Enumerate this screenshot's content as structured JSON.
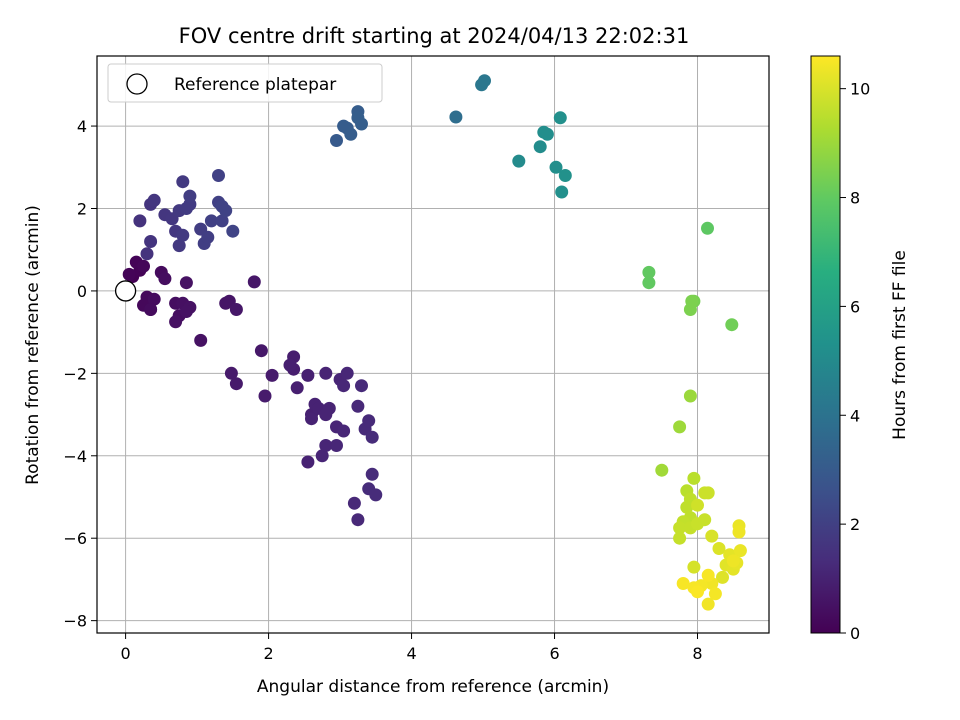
{
  "chart_data": {
    "type": "scatter",
    "title": "FOV centre drift starting at 2024/04/13 22:02:31",
    "xlabel": "Angular distance from reference (arcmin)",
    "ylabel": "Rotation from reference (arcmin)",
    "xlim": [
      -0.4,
      9.0
    ],
    "ylim": [
      -8.3,
      5.7
    ],
    "xticks": [
      0,
      2,
      4,
      6,
      8
    ],
    "yticks": [
      -8,
      -6,
      -4,
      -2,
      0,
      2,
      4
    ],
    "grid": true,
    "colormap": "viridis",
    "colorbar": {
      "label": "Hours from first FF file",
      "range": [
        0,
        10.6
      ],
      "ticks": [
        0,
        2,
        4,
        6,
        8,
        10
      ]
    },
    "legend": {
      "position": "top-left",
      "entries": [
        "Reference platepar"
      ]
    },
    "reference_point": {
      "x": 0,
      "y": 0,
      "label": "Reference platepar"
    },
    "points": [
      [
        0.1,
        0.35,
        0.0
      ],
      [
        0.2,
        0.5,
        0.05
      ],
      [
        0.15,
        0.7,
        0.1
      ],
      [
        0.05,
        0.4,
        0.1
      ],
      [
        0.25,
        0.6,
        0.15
      ],
      [
        0.3,
        -0.15,
        0.2
      ],
      [
        0.25,
        -0.35,
        0.2
      ],
      [
        0.35,
        -0.45,
        0.25
      ],
      [
        0.4,
        -0.2,
        0.3
      ],
      [
        0.35,
        -0.45,
        0.3
      ],
      [
        0.5,
        0.45,
        0.3
      ],
      [
        0.55,
        0.3,
        0.35
      ],
      [
        0.7,
        -0.3,
        0.4
      ],
      [
        0.75,
        -0.6,
        0.4
      ],
      [
        0.7,
        -0.75,
        0.45
      ],
      [
        0.8,
        -0.3,
        0.45
      ],
      [
        0.9,
        -0.4,
        0.5
      ],
      [
        0.85,
        -0.5,
        0.5
      ],
      [
        0.85,
        0.2,
        0.5
      ],
      [
        1.05,
        -1.2,
        0.5
      ],
      [
        1.4,
        -0.3,
        0.6
      ],
      [
        1.45,
        -0.25,
        0.6
      ],
      [
        1.55,
        -0.45,
        0.65
      ],
      [
        1.8,
        0.22,
        0.65
      ],
      [
        1.9,
        -1.45,
        0.7
      ],
      [
        1.48,
        -2.0,
        0.75
      ],
      [
        1.55,
        -2.25,
        0.75
      ],
      [
        2.05,
        -2.05,
        0.8
      ],
      [
        1.95,
        -2.55,
        0.8
      ],
      [
        2.35,
        -1.6,
        0.85
      ],
      [
        2.35,
        -1.9,
        0.85
      ],
      [
        2.3,
        -1.8,
        0.9
      ],
      [
        2.4,
        -2.35,
        0.9
      ],
      [
        2.55,
        -2.05,
        0.95
      ],
      [
        2.6,
        -3.0,
        0.95
      ],
      [
        2.6,
        -3.1,
        1.0
      ],
      [
        2.65,
        -2.75,
        1.0
      ],
      [
        2.7,
        -2.85,
        1.0
      ],
      [
        2.55,
        -4.15,
        1.0
      ],
      [
        2.8,
        -2.0,
        1.05
      ],
      [
        2.8,
        -3.0,
        1.05
      ],
      [
        2.85,
        -2.85,
        1.05
      ],
      [
        2.75,
        -4.0,
        1.1
      ],
      [
        2.8,
        -3.75,
        1.1
      ],
      [
        2.95,
        -3.3,
        1.1
      ],
      [
        3.0,
        -2.15,
        1.1
      ],
      [
        3.05,
        -2.3,
        1.15
      ],
      [
        3.1,
        -2.0,
        1.15
      ],
      [
        3.05,
        -3.4,
        1.15
      ],
      [
        2.95,
        -3.75,
        1.15
      ],
      [
        3.2,
        -5.15,
        1.2
      ],
      [
        3.25,
        -5.55,
        1.2
      ],
      [
        3.25,
        -2.8,
        1.2
      ],
      [
        3.3,
        -2.3,
        1.25
      ],
      [
        3.35,
        -3.35,
        1.25
      ],
      [
        3.4,
        -3.15,
        1.25
      ],
      [
        3.45,
        -3.55,
        1.3
      ],
      [
        3.4,
        -4.8,
        1.3
      ],
      [
        3.5,
        -4.95,
        1.3
      ],
      [
        3.45,
        -4.45,
        1.3
      ],
      [
        0.2,
        1.7,
        1.55
      ],
      [
        0.3,
        0.9,
        1.55
      ],
      [
        0.35,
        1.2,
        1.6
      ],
      [
        0.35,
        2.1,
        1.6
      ],
      [
        0.4,
        2.2,
        1.65
      ],
      [
        0.55,
        1.85,
        1.65
      ],
      [
        0.65,
        1.75,
        1.7
      ],
      [
        0.7,
        1.45,
        1.7
      ],
      [
        0.75,
        1.1,
        1.75
      ],
      [
        0.75,
        1.95,
        1.75
      ],
      [
        0.8,
        1.35,
        1.8
      ],
      [
        0.8,
        2.65,
        1.8
      ],
      [
        0.85,
        2.0,
        1.85
      ],
      [
        0.9,
        2.1,
        1.85
      ],
      [
        0.9,
        2.3,
        1.9
      ],
      [
        1.05,
        1.5,
        1.9
      ],
      [
        1.1,
        1.15,
        1.95
      ],
      [
        1.15,
        1.3,
        1.95
      ],
      [
        1.2,
        1.7,
        2.0
      ],
      [
        1.3,
        2.15,
        2.0
      ],
      [
        1.3,
        2.8,
        2.05
      ],
      [
        1.35,
        1.7,
        2.05
      ],
      [
        1.35,
        2.05,
        2.1
      ],
      [
        1.4,
        1.95,
        2.1
      ],
      [
        1.5,
        1.45,
        2.15
      ],
      [
        2.95,
        3.65,
        3.0
      ],
      [
        3.05,
        4.0,
        3.05
      ],
      [
        3.1,
        3.95,
        3.05
      ],
      [
        3.15,
        3.8,
        3.1
      ],
      [
        3.25,
        4.35,
        3.1
      ],
      [
        3.25,
        4.2,
        3.15
      ],
      [
        3.3,
        4.05,
        3.15
      ],
      [
        4.62,
        4.22,
        3.8
      ],
      [
        4.98,
        5.0,
        4.2
      ],
      [
        5.02,
        5.1,
        4.2
      ],
      [
        5.5,
        3.15,
        5.1
      ],
      [
        5.8,
        3.5,
        5.15
      ],
      [
        5.85,
        3.85,
        5.2
      ],
      [
        5.9,
        3.8,
        5.2
      ],
      [
        6.02,
        3.0,
        5.25
      ],
      [
        6.08,
        4.2,
        5.3
      ],
      [
        6.1,
        2.4,
        5.3
      ],
      [
        6.15,
        2.8,
        5.35
      ],
      [
        7.32,
        0.45,
        8.0
      ],
      [
        7.32,
        0.2,
        8.0
      ],
      [
        8.14,
        1.52,
        7.9
      ],
      [
        7.95,
        -0.25,
        8.4
      ],
      [
        7.9,
        -0.45,
        8.5
      ],
      [
        7.92,
        -0.25,
        8.5
      ],
      [
        8.48,
        -0.82,
        8.3
      ],
      [
        7.5,
        -4.35,
        9.1
      ],
      [
        7.75,
        -3.3,
        9.05
      ],
      [
        7.9,
        -2.55,
        9.0
      ],
      [
        7.95,
        -4.55,
        9.5
      ],
      [
        7.85,
        -4.85,
        9.5
      ],
      [
        7.9,
        -5.05,
        9.6
      ],
      [
        7.85,
        -5.25,
        9.6
      ],
      [
        7.9,
        -5.5,
        9.6
      ],
      [
        7.8,
        -5.6,
        9.65
      ],
      [
        7.75,
        -5.75,
        9.7
      ],
      [
        7.75,
        -6.0,
        9.7
      ],
      [
        7.9,
        -5.75,
        9.7
      ],
      [
        8.0,
        -5.65,
        9.75
      ],
      [
        8.1,
        -5.55,
        9.75
      ],
      [
        8.15,
        -4.9,
        9.8
      ],
      [
        8.1,
        -4.9,
        9.8
      ],
      [
        8.0,
        -5.2,
        9.85
      ],
      [
        7.95,
        -6.7,
        9.95
      ],
      [
        8.2,
        -5.95,
        10.0
      ],
      [
        8.3,
        -6.25,
        10.05
      ],
      [
        8.35,
        -6.95,
        10.1
      ],
      [
        8.4,
        -6.65,
        10.15
      ],
      [
        8.45,
        -6.4,
        10.2
      ],
      [
        8.5,
        -6.75,
        10.2
      ],
      [
        8.55,
        -6.6,
        10.25
      ],
      [
        8.58,
        -5.7,
        10.3
      ],
      [
        8.6,
        -6.3,
        10.3
      ],
      [
        8.58,
        -5.85,
        10.35
      ],
      [
        8.5,
        -6.55,
        10.35
      ],
      [
        8.15,
        -7.6,
        10.4
      ],
      [
        8.2,
        -7.1,
        10.4
      ],
      [
        8.25,
        -7.35,
        10.45
      ],
      [
        8.05,
        -7.15,
        10.45
      ],
      [
        7.95,
        -7.2,
        10.5
      ],
      [
        7.8,
        -7.1,
        10.5
      ],
      [
        8.15,
        -6.9,
        10.5
      ],
      [
        8.0,
        -7.3,
        10.55
      ]
    ]
  }
}
